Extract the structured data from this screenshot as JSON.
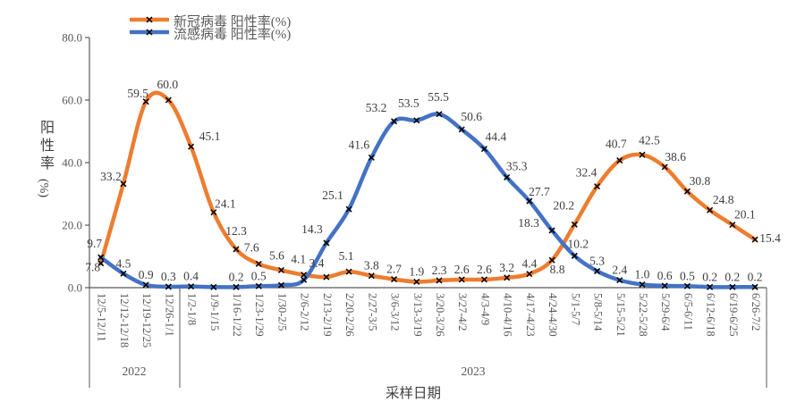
{
  "legend": {
    "items": [
      {
        "label": "新冠病毒 阳性率(%)",
        "color": "#ED7D31"
      },
      {
        "label": "流感病毒 阳性率(%)",
        "color": "#4472C4"
      }
    ]
  },
  "y_axis": {
    "title_cn": "阳性率",
    "title_unit": "(%)",
    "ticks": [
      "0.0",
      "20.0",
      "40.0",
      "60.0",
      "80.0"
    ]
  },
  "x_axis": {
    "title": "采样日期",
    "year_groups": [
      {
        "label": "2022",
        "span": [
          0,
          3
        ]
      },
      {
        "label": "2023",
        "span": [
          4,
          29
        ]
      }
    ]
  },
  "chart_data": {
    "type": "line",
    "smooth": true,
    "marker": "x",
    "grid": false,
    "legend_position": "top",
    "ylim": [
      0,
      80
    ],
    "categories": [
      "12/5-12/11",
      "12/12-12/18",
      "12/19-12/25",
      "12/26-1/1",
      "1/2-1/8",
      "1/9-1/15",
      "1/16-1/22",
      "1/23-1/29",
      "1/30-2/5",
      "2/6-2/12",
      "2/13-2/19",
      "2/20-2/26",
      "2/27-3/5",
      "3/6-3/12",
      "3/13-3/19",
      "3/20-3/26",
      "3/27-4/2",
      "4/3-4/9",
      "4/10-4/16",
      "4/17-4/23",
      "4/24-4/30",
      "5/1-5/7",
      "5/8-5/14",
      "5/15-5/21",
      "5/22-5/28",
      "5/29-6/4",
      "6/5-6/11",
      "6/12-6/18",
      "6/19-6/25",
      "6/26-7/2"
    ],
    "series": [
      {
        "name": "新冠病毒 阳性率(%)",
        "color": "#ED7D31",
        "values": [
          7.8,
          33.2,
          59.5,
          60.0,
          45.1,
          24.1,
          12.3,
          7.6,
          5.6,
          4.1,
          3.4,
          5.1,
          3.8,
          2.7,
          1.9,
          2.3,
          2.6,
          2.6,
          3.2,
          4.4,
          8.8,
          20.2,
          32.4,
          40.7,
          42.5,
          38.6,
          30.8,
          24.8,
          20.1,
          15.4
        ],
        "labels": [
          "7.8",
          "33.2",
          "59.5",
          "60.0",
          "45.1",
          "24.1",
          "12.3",
          "7.6",
          "5.6",
          "4.1",
          "3.4",
          "5.1",
          "3.8",
          "2.7",
          "1.9",
          "2.3",
          "2.6",
          "2.6",
          "3.2",
          "4.4",
          "8.8",
          "20.2",
          "32.4",
          "40.7",
          "42.5",
          "38.6",
          "30.8",
          "24.8",
          "20.1",
          "15.4"
        ]
      },
      {
        "name": "流感病毒 阳性率(%)",
        "color": "#4472C4",
        "values": [
          9.7,
          4.5,
          0.9,
          0.3,
          0.4,
          0.2,
          0.2,
          0.5,
          0.8,
          2.5,
          14.3,
          25.1,
          41.6,
          53.2,
          53.5,
          55.5,
          50.6,
          44.4,
          35.3,
          27.7,
          18.3,
          10.2,
          5.3,
          2.4,
          1.0,
          0.6,
          0.5,
          0.2,
          0.2,
          0.2
        ],
        "labels": [
          "9.7",
          "4.5",
          "0.9",
          "0.3",
          "0.4",
          "",
          "0.2",
          "0.5",
          "",
          "",
          "14.3",
          "25.1",
          "41.6",
          "53.2",
          "53.5",
          "55.5",
          "50.6",
          "44.4",
          "35.3",
          "27.7",
          "18.3",
          "10.2",
          "5.3",
          "2.4",
          "1.0",
          "0.6",
          "0.5",
          "0.2",
          "0.2",
          "0.2"
        ]
      }
    ]
  }
}
